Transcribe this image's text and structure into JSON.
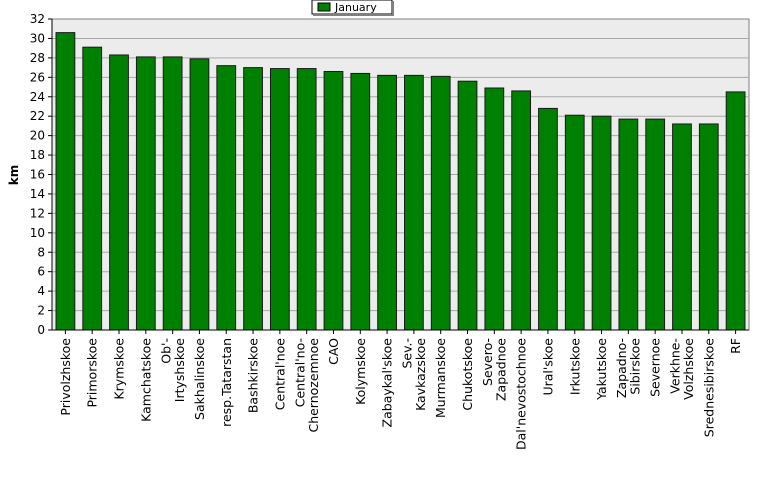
{
  "chart_data": {
    "type": "bar",
    "title": "",
    "xlabel": "",
    "ylabel": "km",
    "ylim": [
      0,
      32
    ],
    "ytick_step": 2,
    "grid": true,
    "legend_position": "top-center",
    "categories": [
      "Privolzhskoe",
      "Primorskoe",
      "Krymskoe",
      "Kamchatskoe",
      "Ob'-Irtyshskoe",
      "Sakhalinskoe",
      "resp.Tatarstan",
      "Bashkirskoe",
      "Central'noe",
      "Central'no-Chernozemnoe",
      "CAO",
      "Kolymskoe",
      "Zabaykal'skoe",
      "Sev.-Kavkazskoe",
      "Murmanskoe",
      "Chukotskoe",
      "Severo-Zapadnoe",
      "Dal'nevostochnoe",
      "Ural'skoe",
      "Irkutskoe",
      "Yakutskoe",
      "Zapadno-Sibirskoe",
      "Severnoe",
      "Verkhne-Volzhskoe",
      "Srednesibirskoe",
      "RF"
    ],
    "series": [
      {
        "name": "January",
        "color": "#008000",
        "values": [
          30.6,
          29.1,
          28.3,
          28.1,
          28.1,
          27.9,
          27.2,
          27.0,
          26.9,
          26.9,
          26.6,
          26.4,
          26.2,
          26.2,
          26.1,
          25.6,
          24.9,
          24.6,
          22.8,
          22.1,
          22.0,
          21.7,
          21.7,
          21.2,
          21.2,
          24.5
        ]
      }
    ],
    "colors": {
      "plot_background": "#ececec",
      "gridline": "#a8a8a8",
      "bar_fill": "#008000",
      "bar_edge": "#1a1a1a"
    }
  }
}
